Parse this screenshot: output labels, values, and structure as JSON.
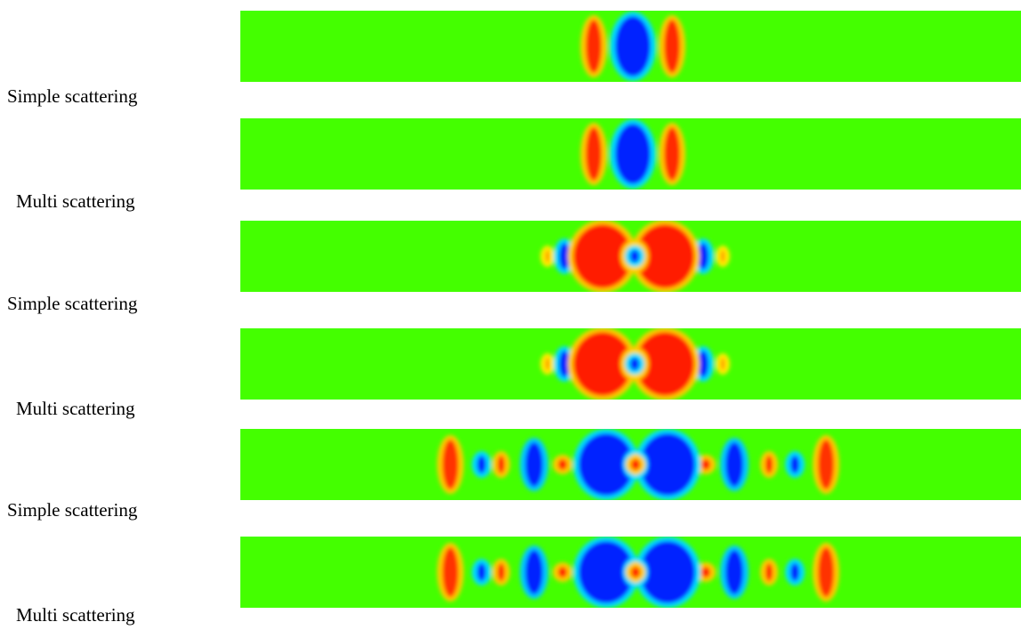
{
  "panels": [
    {
      "label": "Simple scattering"
    },
    {
      "label": "Multi scattering"
    },
    {
      "label": "Simple scattering"
    },
    {
      "label": "Multi scattering"
    },
    {
      "label": "Simple scattering"
    },
    {
      "label": "Multi scattering"
    }
  ]
}
